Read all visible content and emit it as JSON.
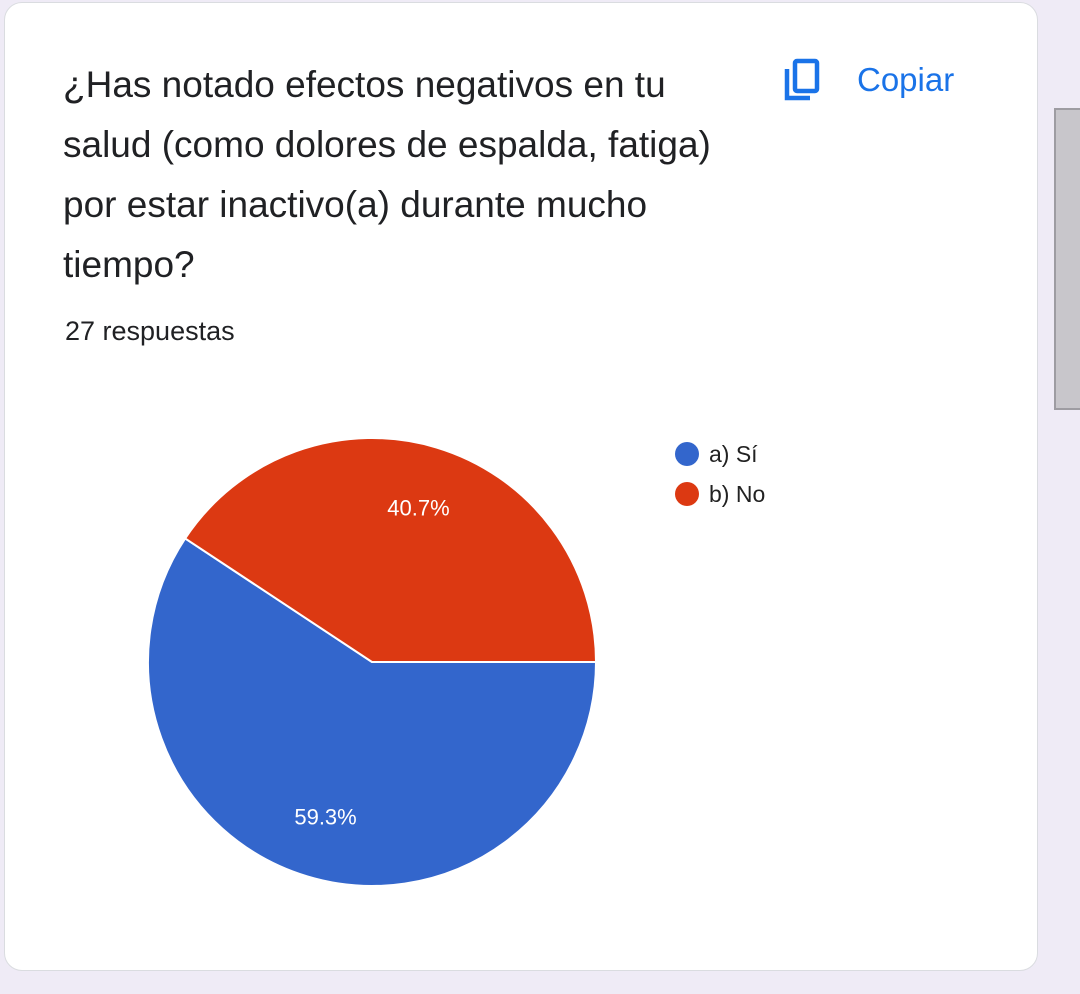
{
  "question": "¿Has notado efectos negativos en tu salud (como dolores de espalda, fatiga) por estar inactivo(a) durante mucho tiempo?",
  "copy_button": {
    "label": "Copiar",
    "icon": "copy-icon"
  },
  "response_count": "27 respuestas",
  "colors": {
    "accent": "#1a73e8",
    "series_a": "#3366cc",
    "series_b": "#dc3912"
  },
  "chart_data": {
    "type": "pie",
    "labels": [
      "a) Sí",
      "b) No"
    ],
    "values": [
      59.3,
      40.7
    ],
    "value_labels": [
      "59.3%",
      "40.7%"
    ],
    "colors": [
      "#3366cc",
      "#dc3912"
    ],
    "legend_position": "right",
    "title": ""
  }
}
